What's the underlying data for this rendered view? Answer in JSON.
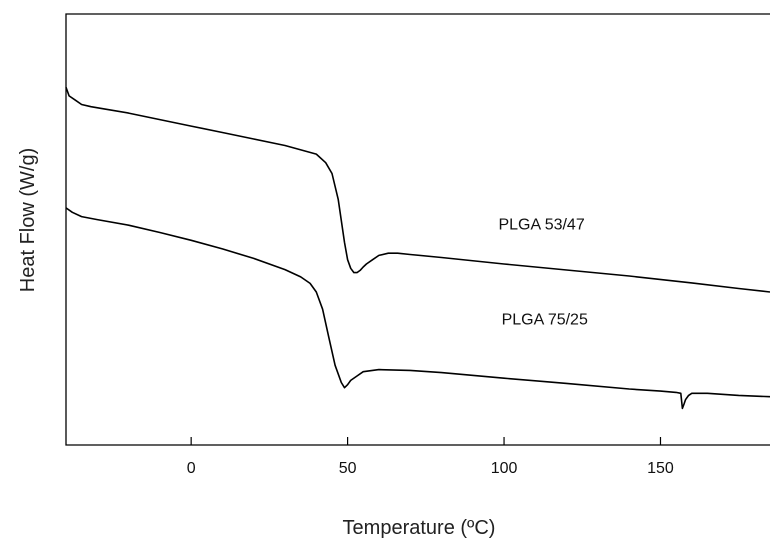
{
  "chart_data": {
    "type": "line",
    "xlabel": "Temperature (ºC)",
    "ylabel": "Heat Flow (W/g)",
    "xlim": [
      -40,
      185
    ],
    "ylim": [
      0,
      100
    ],
    "x_ticks": [
      0,
      50,
      100,
      150
    ],
    "x_tick_labels": [
      "0",
      "50",
      "100",
      "150"
    ],
    "y_tick_labels_shown": false,
    "grid": false,
    "series": [
      {
        "name": "PLGA 53/47",
        "x": [
          -40,
          -39,
          -37,
          -35,
          -32,
          -28,
          -20,
          -10,
          0,
          10,
          20,
          30,
          40,
          43,
          45,
          47,
          49,
          50,
          51,
          52,
          53,
          54,
          55,
          56,
          58,
          60,
          63,
          66,
          70,
          80,
          100,
          120,
          140,
          160,
          175,
          185
        ],
        "y": [
          83,
          81,
          80,
          79,
          78.5,
          78,
          77,
          75.5,
          74,
          72.5,
          71,
          69.5,
          67.5,
          65.5,
          63,
          57,
          47,
          43,
          41,
          40,
          40,
          40.5,
          41.3,
          42,
          43,
          44,
          44.5,
          44.5,
          44.2,
          43.5,
          42,
          40.6,
          39.2,
          37.6,
          36.3,
          35.5
        ]
      },
      {
        "name": "PLGA 75/25",
        "x": [
          -40,
          -38,
          -35,
          -30,
          -20,
          -10,
          0,
          10,
          20,
          30,
          35,
          38,
          40,
          42,
          44,
          46,
          48,
          49,
          50,
          51,
          53,
          55,
          60,
          70,
          80,
          100,
          120,
          140,
          150,
          155,
          156.5,
          157,
          157.5,
          158,
          159,
          160,
          165,
          175,
          185
        ],
        "y": [
          55,
          54,
          53,
          52.3,
          51,
          49.3,
          47.5,
          45.5,
          43.3,
          40.7,
          39,
          37.5,
          35.5,
          31.5,
          25,
          18.5,
          14.5,
          13.3,
          14,
          15,
          16,
          17,
          17.5,
          17.3,
          16.8,
          15.5,
          14.3,
          13,
          12.5,
          12.2,
          12,
          8.5,
          9.5,
          10.5,
          11.5,
          12,
          12,
          11.5,
          11.2
        ]
      }
    ]
  }
}
